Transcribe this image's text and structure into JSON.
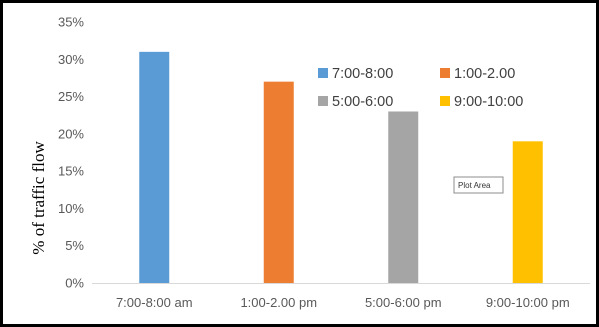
{
  "chart_data": {
    "type": "bar",
    "title": "",
    "xlabel": "",
    "ylabel": "% of traffic flow",
    "categories": [
      "7:00-8:00 am",
      "1:00-2.00 pm",
      "5:00-6:00 pm",
      "9:00-10:00 pm"
    ],
    "series": [
      {
        "name": "7:00-8:00",
        "color": "#5B9BD5",
        "values": [
          31,
          null,
          null,
          null
        ]
      },
      {
        "name": "1:00-2.00",
        "color": "#ED7D31",
        "values": [
          null,
          27,
          null,
          null
        ]
      },
      {
        "name": "5:00-6:00",
        "color": "#A5A5A5",
        "values": [
          null,
          null,
          23,
          null
        ]
      },
      {
        "name": "9:00-10:00",
        "color": "#FFC000",
        "values": [
          null,
          null,
          null,
          19
        ]
      }
    ],
    "yticks": [
      "0%",
      "5%",
      "10%",
      "15%",
      "20%",
      "25%",
      "30%",
      "35%"
    ],
    "ylim": [
      0,
      35
    ],
    "grid": false,
    "legend_position": "top-right",
    "tooltip": "Plot Area"
  }
}
